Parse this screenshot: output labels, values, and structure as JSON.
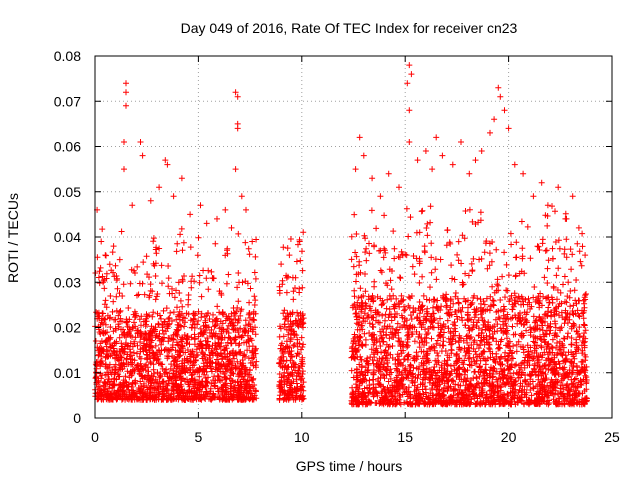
{
  "chart_data": {
    "type": "scatter",
    "title": "Day 049 of 2016, Rate Of TEC Index for receiver cn23",
    "xlabel": "GPS time / hours",
    "ylabel": "ROTI / TECUs",
    "xlim": [
      0,
      25
    ],
    "ylim": [
      0,
      0.08
    ],
    "xticks": [
      0,
      5,
      10,
      15,
      20,
      25
    ],
    "xtick_labels": [
      "0",
      "5",
      "10",
      "15",
      "20",
      "25"
    ],
    "yticks": [
      0,
      0.01,
      0.02,
      0.03,
      0.04,
      0.05,
      0.06,
      0.07,
      0.08
    ],
    "ytick_labels": [
      "0",
      "0.01",
      "0.02",
      "0.03",
      "0.04",
      "0.05",
      "0.06",
      "0.07",
      "0.08"
    ],
    "grid": true,
    "marker": "+",
    "color": "#ff0000",
    "series": [
      {
        "name": "ROTI",
        "points": [
          [
            0.1,
            0.046
          ],
          [
            0.3,
            0.039
          ],
          [
            0.5,
            0.036
          ],
          [
            0.9,
            0.038
          ],
          [
            1.2,
            0.035
          ],
          [
            1.5,
            0.074
          ],
          [
            1.5,
            0.072
          ],
          [
            1.5,
            0.069
          ],
          [
            1.4,
            0.061
          ],
          [
            1.4,
            0.055
          ],
          [
            1.8,
            0.047
          ],
          [
            2.2,
            0.061
          ],
          [
            2.3,
            0.058
          ],
          [
            2.7,
            0.048
          ],
          [
            3.1,
            0.051
          ],
          [
            3.4,
            0.057
          ],
          [
            3.5,
            0.056
          ],
          [
            3.8,
            0.049
          ],
          [
            4.2,
            0.053
          ],
          [
            4.6,
            0.045
          ],
          [
            5.1,
            0.047
          ],
          [
            5.4,
            0.043
          ],
          [
            5.9,
            0.044
          ],
          [
            6.3,
            0.046
          ],
          [
            6.6,
            0.042
          ],
          [
            6.8,
            0.072
          ],
          [
            6.9,
            0.071
          ],
          [
            6.9,
            0.065
          ],
          [
            6.9,
            0.064
          ],
          [
            6.8,
            0.055
          ],
          [
            7.1,
            0.049
          ],
          [
            7.3,
            0.046
          ],
          [
            7.6,
            0.039
          ],
          [
            9.0,
            0.034
          ],
          [
            9.4,
            0.036
          ],
          [
            9.7,
            0.031
          ],
          [
            9.9,
            0.039
          ],
          [
            12.6,
            0.055
          ],
          [
            12.8,
            0.062
          ],
          [
            13.0,
            0.058
          ],
          [
            13.4,
            0.053
          ],
          [
            13.8,
            0.049
          ],
          [
            14.2,
            0.054
          ],
          [
            14.7,
            0.051
          ],
          [
            15.1,
            0.074
          ],
          [
            15.2,
            0.078
          ],
          [
            15.3,
            0.076
          ],
          [
            15.2,
            0.068
          ],
          [
            15.2,
            0.061
          ],
          [
            15.6,
            0.057
          ],
          [
            16.0,
            0.059
          ],
          [
            16.3,
            0.055
          ],
          [
            16.5,
            0.062
          ],
          [
            16.8,
            0.058
          ],
          [
            17.3,
            0.056
          ],
          [
            17.7,
            0.061
          ],
          [
            18.1,
            0.054
          ],
          [
            18.4,
            0.057
          ],
          [
            18.7,
            0.059
          ],
          [
            19.1,
            0.063
          ],
          [
            19.3,
            0.066
          ],
          [
            19.5,
            0.073
          ],
          [
            19.6,
            0.071
          ],
          [
            19.8,
            0.068
          ],
          [
            20.0,
            0.064
          ],
          [
            20.3,
            0.056
          ],
          [
            20.7,
            0.054
          ],
          [
            21.2,
            0.049
          ],
          [
            21.6,
            0.052
          ],
          [
            21.9,
            0.047
          ],
          [
            22.4,
            0.051
          ],
          [
            22.8,
            0.044
          ],
          [
            23.1,
            0.049
          ],
          [
            23.4,
            0.042
          ],
          [
            23.7,
            0.036
          ]
        ],
        "density_segments": [
          {
            "x_from": 0.0,
            "x_to": 7.8,
            "y_floor": 0.004,
            "y_typical_top": 0.03
          },
          {
            "x_from": 8.9,
            "x_to": 10.1,
            "y_floor": 0.004,
            "y_typical_top": 0.03
          },
          {
            "x_from": 12.4,
            "x_to": 23.8,
            "y_floor": 0.003,
            "y_typical_top": 0.035
          }
        ]
      }
    ]
  }
}
